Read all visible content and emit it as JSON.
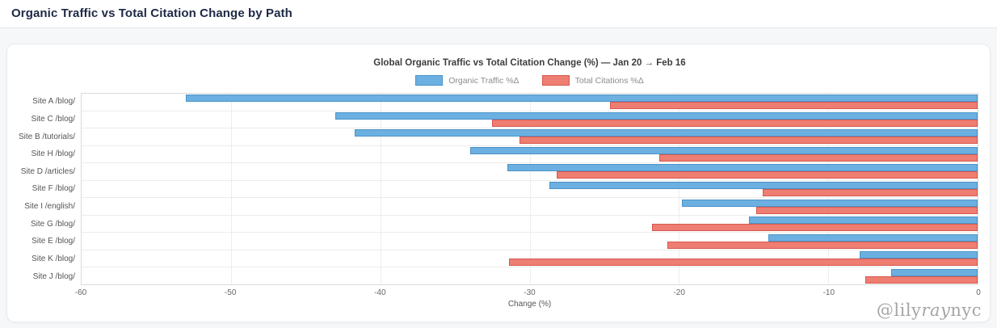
{
  "page": {
    "title": "Organic Traffic vs Total Citation Change by Path",
    "watermark": {
      "prefix": "@lily",
      "italic": "ray",
      "suffix": "nyc"
    }
  },
  "chart_data": {
    "type": "bar",
    "orientation": "horizontal",
    "title": "Global Organic Traffic vs Total Citation Change (%) — Jan 20 → Feb 16",
    "xlabel": "Change (%)",
    "xlim": [
      -60,
      0
    ],
    "xticks": [
      -60,
      -50,
      -40,
      -30,
      -20,
      -10,
      0
    ],
    "grid": true,
    "legend_position": "top-center",
    "categories": [
      "Site A /blog/",
      "Site C /blog/",
      "Site B /tutorials/",
      "Site H /blog/",
      "Site D /articles/",
      "Site F /blog/",
      "Site I /english/",
      "Site G /blog/",
      "Site E /blog/",
      "Site K /blog/",
      "Site J /blog/"
    ],
    "series": [
      {
        "name": "Organic Traffic %Δ",
        "color": "#6cb0e1",
        "border_color": "#4a92c8",
        "values": [
          -53.0,
          -43.0,
          -41.7,
          -34.0,
          -31.5,
          -28.7,
          -19.8,
          -15.3,
          -14.0,
          -7.9,
          -5.8
        ]
      },
      {
        "name": "Total Citations %Δ",
        "color": "#ee7d72",
        "border_color": "#d6594e",
        "values": [
          -24.6,
          -32.5,
          -30.7,
          -21.3,
          -28.2,
          -14.4,
          -14.8,
          -21.8,
          -20.8,
          -31.4,
          -7.5
        ]
      }
    ]
  }
}
